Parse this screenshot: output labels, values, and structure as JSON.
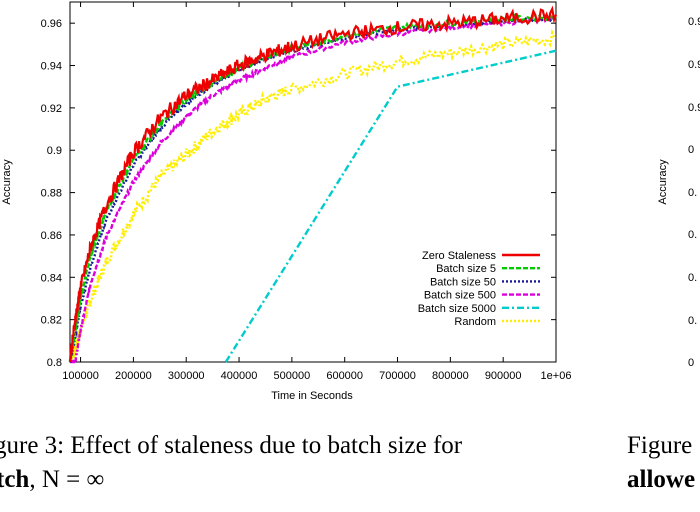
{
  "chart_data": {
    "type": "line",
    "title": "",
    "xlabel": "Time in Seconds",
    "ylabel": "Accuracy",
    "xlim": [
      80000,
      1000000
    ],
    "ylim": [
      0.8,
      0.97
    ],
    "x_ticks": [
      "100000",
      "200000",
      "300000",
      "400000",
      "500000",
      "600000",
      "700000",
      "800000",
      "900000",
      "1e+06"
    ],
    "y_ticks": [
      "0.8",
      "0.82",
      "0.84",
      "0.86",
      "0.88",
      "0.9",
      "0.92",
      "0.94",
      "0.96"
    ],
    "legend_position": "bottom-right",
    "series": [
      {
        "name": "Zero Staleness",
        "color": "#ee0000",
        "dash": "solid",
        "x": [
          80000,
          90000,
          100000,
          120000,
          150000,
          200000,
          250000,
          300000,
          350000,
          400000,
          450000,
          500000,
          600000,
          700000,
          800000,
          900000,
          1000000
        ],
        "y": [
          0.801,
          0.82,
          0.835,
          0.855,
          0.875,
          0.899,
          0.915,
          0.926,
          0.933,
          0.94,
          0.945,
          0.949,
          0.955,
          0.958,
          0.96,
          0.962,
          0.964
        ]
      },
      {
        "name": "Batch size 5",
        "color": "#00cc00",
        "dash": "dashed",
        "x": [
          80000,
          90000,
          100000,
          120000,
          150000,
          200000,
          250000,
          300000,
          350000,
          400000,
          450000,
          500000,
          600000,
          700000,
          800000,
          900000,
          1000000
        ],
        "y": [
          0.8,
          0.815,
          0.83,
          0.851,
          0.872,
          0.896,
          0.912,
          0.924,
          0.932,
          0.939,
          0.944,
          0.948,
          0.954,
          0.958,
          0.96,
          0.962,
          0.963
        ]
      },
      {
        "name": "Batch size 50",
        "color": "#1a1a99",
        "dash": "dotted",
        "x": [
          80000,
          90000,
          100000,
          120000,
          150000,
          200000,
          250000,
          300000,
          350000,
          400000,
          450000,
          500000,
          600000,
          700000,
          800000,
          900000,
          1000000
        ],
        "y": [
          0.8,
          0.812,
          0.826,
          0.846,
          0.868,
          0.893,
          0.91,
          0.922,
          0.931,
          0.938,
          0.943,
          0.947,
          0.953,
          0.957,
          0.959,
          0.961,
          0.962
        ]
      },
      {
        "name": "Batch size 500",
        "color": "#dd00dd",
        "dash": "dashed",
        "x": [
          80000,
          90000,
          100000,
          120000,
          150000,
          200000,
          250000,
          300000,
          350000,
          400000,
          450000,
          500000,
          600000,
          700000,
          800000,
          900000,
          1000000
        ],
        "y": [
          0.8,
          0.8,
          0.815,
          0.838,
          0.86,
          0.885,
          0.903,
          0.916,
          0.926,
          0.933,
          0.939,
          0.944,
          0.951,
          0.955,
          0.958,
          0.96,
          0.962
        ]
      },
      {
        "name": "Batch size 5000",
        "color": "#00cccc",
        "dash": "dashdot",
        "x": [
          375000,
          700000,
          1000000
        ],
        "y": [
          0.8,
          0.93,
          0.947
        ]
      },
      {
        "name": "Random",
        "color": "#ffee00",
        "dash": "dotted",
        "x": [
          80000,
          90000,
          100000,
          120000,
          150000,
          200000,
          250000,
          300000,
          350000,
          400000,
          450000,
          500000,
          600000,
          700000,
          800000,
          900000,
          1000000
        ],
        "y": [
          0.8,
          0.806,
          0.815,
          0.83,
          0.848,
          0.87,
          0.887,
          0.898,
          0.909,
          0.917,
          0.924,
          0.929,
          0.936,
          0.942,
          0.946,
          0.95,
          0.953
        ]
      }
    ]
  },
  "right_panel": {
    "ylabel": "Accuracy",
    "tick_fragments": [
      "0.9",
      "0.9",
      "0.9",
      "0",
      "0.",
      "0.",
      "0.",
      "0.",
      "0"
    ]
  },
  "captions": {
    "left_line1": "gure 3:  Effect of staleness due to batch size for",
    "left_line2_bold": "tch",
    "left_line2_rest": ", N = ∞",
    "right_line1": "Figure",
    "right_line2_bold": "allowe"
  }
}
